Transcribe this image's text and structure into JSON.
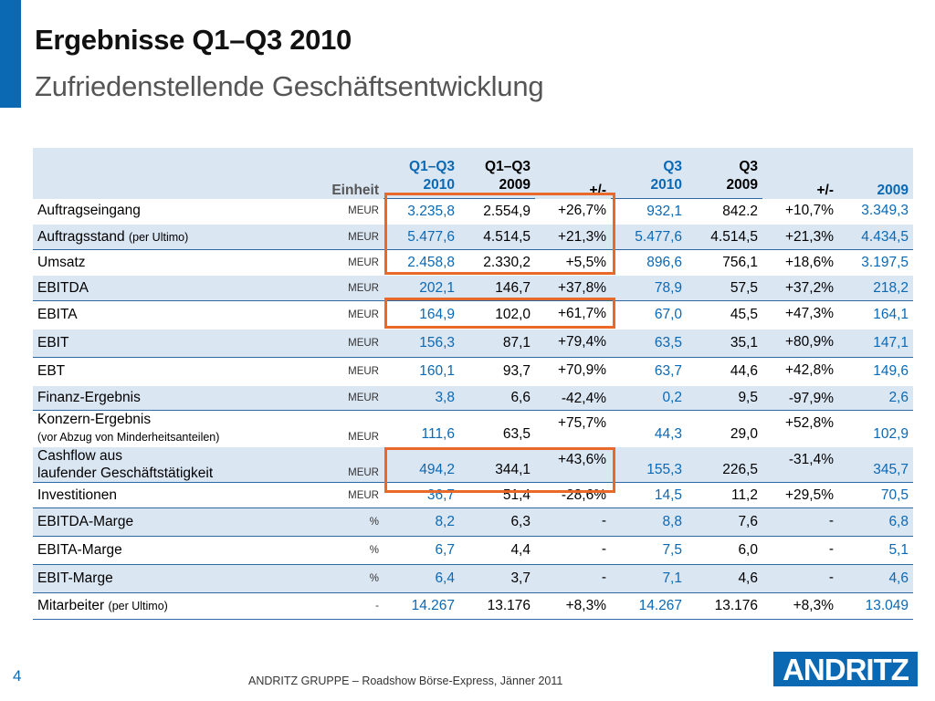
{
  "header": {
    "title": "Ergebnisse Q1–Q3 2010",
    "subtitle": "Zufriedenstellende Geschäftsentwicklung"
  },
  "table": {
    "head": {
      "unit": "Einheit",
      "q13_2010_top": "Q1–Q3",
      "q13_2010_bot": "2010",
      "q13_2009_top": "Q1–Q3",
      "q13_2009_bot": "2009",
      "chg1": "+/-",
      "q3_2010_top": "Q3",
      "q3_2010_bot": "2010",
      "q3_2009_top": "Q3",
      "q3_2009_bot": "2009",
      "chg2": "+/-",
      "y2009": "2009"
    },
    "rows": [
      {
        "label": "Auftragseingang",
        "note": "",
        "unit": "MEUR",
        "a": "3.235,8",
        "b": "2.554,9",
        "c": "+26,7%",
        "d": "932,1",
        "e": "842.2",
        "f": "+10,7%",
        "g": "3.349,3"
      },
      {
        "label": "Auftragsstand",
        "note": "(per Ultimo)",
        "unit": "MEUR",
        "a": "5.477,6",
        "b": "4.514,5",
        "c": "+21,3%",
        "d": "5.477,6",
        "e": "4.514,5",
        "f": "+21,3%",
        "g": "4.434,5"
      },
      {
        "label": "Umsatz",
        "note": "",
        "unit": "MEUR",
        "a": "2.458,8",
        "b": "2.330,2",
        "c": "+5,5%",
        "d": "896,6",
        "e": "756,1",
        "f": "+18,6%",
        "g": "3.197,5"
      },
      {
        "label": "EBITDA",
        "note": "",
        "unit": "MEUR",
        "a": "202,1",
        "b": "146,7",
        "c": "+37,8%",
        "d": "78,9",
        "e": "57,5",
        "f": "+37,2%",
        "g": "218,2"
      },
      {
        "label": "EBITA",
        "note": "",
        "unit": "MEUR",
        "a": "164,9",
        "b": "102,0",
        "c": "+61,7%",
        "d": "67,0",
        "e": "45,5",
        "f": "+47,3%",
        "g": "164,1"
      },
      {
        "label": "EBIT",
        "note": "",
        "unit": "MEUR",
        "a": "156,3",
        "b": "87,1",
        "c": "+79,4%",
        "d": "63,5",
        "e": "35,1",
        "f": "+80,9%",
        "g": "147,1"
      },
      {
        "label": "EBT",
        "note": "",
        "unit": "MEUR",
        "a": "160,1",
        "b": "93,7",
        "c": "+70,9%",
        "d": "63,7",
        "e": "44,6",
        "f": "+42,8%",
        "g": "149,6"
      },
      {
        "label": "Finanz-Ergebnis",
        "note": "",
        "unit": "MEUR",
        "a": "3,8",
        "b": "6,6",
        "c": "-42,4%",
        "d": "0,2",
        "e": "9,5",
        "f": "-97,9%",
        "g": "2,6"
      },
      {
        "label": "Konzern-Ergebnis",
        "label2": "(vor Abzug von Minderheitsanteilen)",
        "unit": "MEUR",
        "a": "111,6",
        "b": "63,5",
        "c": "+75,7%",
        "d": "44,3",
        "e": "29,0",
        "f": "+52,8%",
        "g": "102,9"
      },
      {
        "label": "Cashflow aus",
        "label2": "laufender Geschäftstätigkeit",
        "unit": "MEUR",
        "a": "494,2",
        "b": "344,1",
        "c": "+43,6%",
        "d": "155,3",
        "e": "226,5",
        "f": "-31,4%",
        "g": "345,7"
      },
      {
        "label": "Investitionen",
        "note": "",
        "unit": "MEUR",
        "a": "36,7",
        "b": "51,4",
        "c": "-28,6%",
        "d": "14,5",
        "e": "11,2",
        "f": "+29,5%",
        "g": "70,5"
      },
      {
        "label": "EBITDA-Marge",
        "note": "",
        "unit": "%",
        "a": "8,2",
        "b": "6,3",
        "c": "-",
        "d": "8,8",
        "e": "7,6",
        "f": "-",
        "g": "6,8"
      },
      {
        "label": "EBITA-Marge",
        "note": "",
        "unit": "%",
        "a": "6,7",
        "b": "4,4",
        "c": "-",
        "d": "7,5",
        "e": "6,0",
        "f": "-",
        "g": "5,1"
      },
      {
        "label": "EBIT-Marge",
        "note": "",
        "unit": "%",
        "a": "6,4",
        "b": "3,7",
        "c": "-",
        "d": "7,1",
        "e": "4,6",
        "f": "-",
        "g": "4,6"
      },
      {
        "label": "Mitarbeiter",
        "note": "(per Ultimo)",
        "unit": "-",
        "a": "14.267",
        "b": "13.176",
        "c": "+8,3%",
        "d": "14.267",
        "e": "13.176",
        "f": "+8,3%",
        "g": "13.049"
      }
    ]
  },
  "footer": {
    "page_number": "4",
    "text": "ANDRITZ GRUPPE – Roadshow Börse-Express, Jänner 2011",
    "logo_text": "ANDRITZ"
  },
  "colors": {
    "accent": "#0b69b4",
    "row_shade": "#dbe6f3",
    "highlight": "#e8692a"
  }
}
